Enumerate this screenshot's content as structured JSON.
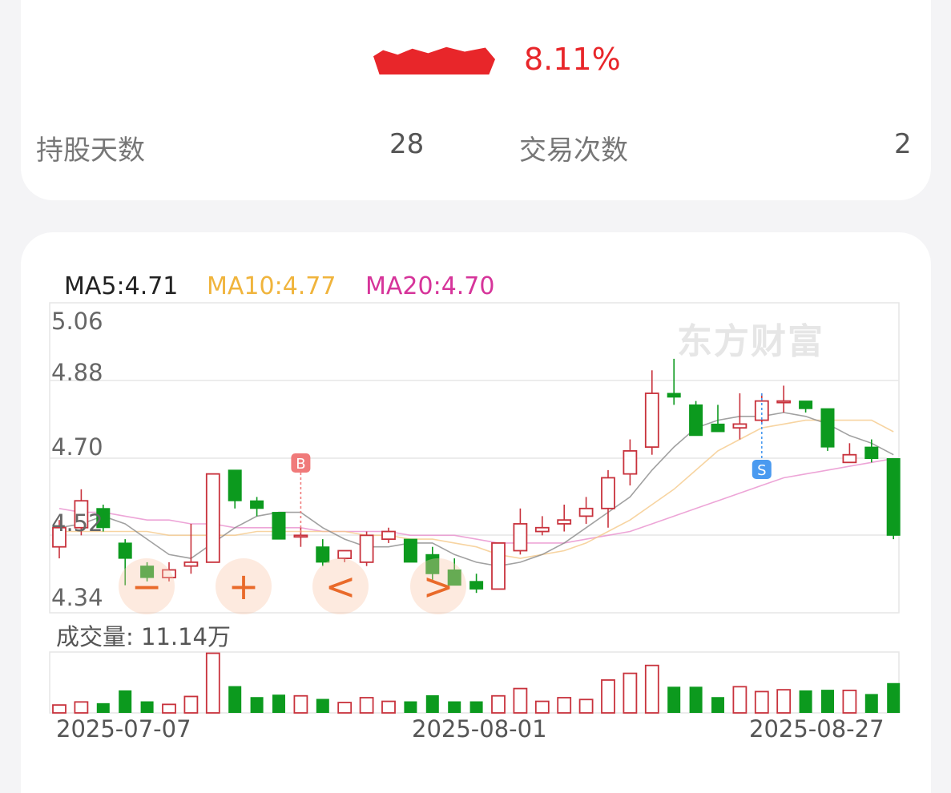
{
  "summary": {
    "percent": "8.11%",
    "hold_days_label": "持股天数",
    "hold_days_value": "28",
    "trade_count_label": "交易次数",
    "trade_count_value": "2"
  },
  "ma_legend": {
    "ma5": "MA5:4.71",
    "ma10": "MA10:4.77",
    "ma20": "MA20:4.70",
    "ma5_color": "#111111",
    "ma10_color": "#f0b43c",
    "ma20_color": "#d6349a"
  },
  "volume_label": "成交量: 11.14万",
  "watermark": "东方财富",
  "controls": [
    "−",
    "+",
    "<",
    ">"
  ],
  "colors": {
    "up": "#c8323c",
    "down": "#0c9a1e",
    "buy_marker": "#f07a7a",
    "sell_marker": "#4a9af0"
  },
  "chart_data": {
    "type": "candlestick",
    "y_ticks": [
      "5.06",
      "4.88",
      "4.70",
      "4.52",
      "4.34"
    ],
    "ylim": [
      4.34,
      5.06
    ],
    "x_ticks": [
      "2025-07-07",
      "2025-08-01",
      "2025-08-27"
    ],
    "markers": [
      {
        "label": "B",
        "candle_index": 11,
        "price": 4.5
      },
      {
        "label": "S",
        "candle_index": 32,
        "price": 4.87
      }
    ],
    "candles": [
      {
        "o": 4.47,
        "c": 4.52,
        "h": 4.54,
        "l": 4.44,
        "v": 0.13
      },
      {
        "o": 4.52,
        "c": 4.59,
        "h": 4.62,
        "l": 4.5,
        "v": 0.18
      },
      {
        "o": 4.57,
        "c": 4.52,
        "h": 4.58,
        "l": 4.51,
        "v": 0.16
      },
      {
        "o": 4.48,
        "c": 4.44,
        "h": 4.49,
        "l": 4.37,
        "v": 0.37
      },
      {
        "o": 4.42,
        "c": 4.39,
        "h": 4.43,
        "l": 4.38,
        "v": 0.19
      },
      {
        "o": 4.39,
        "c": 4.41,
        "h": 4.43,
        "l": 4.38,
        "v": 0.14
      },
      {
        "o": 4.42,
        "c": 4.43,
        "h": 4.53,
        "l": 4.4,
        "v": 0.27
      },
      {
        "o": 4.43,
        "c": 4.66,
        "h": 4.66,
        "l": 4.43,
        "v": 0.98
      },
      {
        "o": 4.67,
        "c": 4.59,
        "h": 4.67,
        "l": 4.57,
        "v": 0.44
      },
      {
        "o": 4.59,
        "c": 4.57,
        "h": 4.6,
        "l": 4.55,
        "v": 0.26
      },
      {
        "o": 4.56,
        "c": 4.49,
        "h": 4.56,
        "l": 4.49,
        "v": 0.3
      },
      {
        "o": 4.5,
        "c": 4.5,
        "h": 4.52,
        "l": 4.47,
        "v": 0.28
      },
      {
        "o": 4.47,
        "c": 4.43,
        "h": 4.49,
        "l": 4.42,
        "v": 0.23
      },
      {
        "o": 4.44,
        "c": 4.46,
        "h": 4.46,
        "l": 4.43,
        "v": 0.17
      },
      {
        "o": 4.43,
        "c": 4.5,
        "h": 4.51,
        "l": 4.42,
        "v": 0.25
      },
      {
        "o": 4.49,
        "c": 4.51,
        "h": 4.52,
        "l": 4.48,
        "v": 0.19
      },
      {
        "o": 4.49,
        "c": 4.43,
        "h": 4.49,
        "l": 4.43,
        "v": 0.19
      },
      {
        "o": 4.45,
        "c": 4.4,
        "h": 4.47,
        "l": 4.38,
        "v": 0.29
      },
      {
        "o": 4.41,
        "c": 4.37,
        "h": 4.44,
        "l": 4.37,
        "v": 0.19
      },
      {
        "o": 4.38,
        "c": 4.36,
        "h": 4.4,
        "l": 4.35,
        "v": 0.19
      },
      {
        "o": 4.36,
        "c": 4.48,
        "h": 4.48,
        "l": 4.36,
        "v": 0.28
      },
      {
        "o": 4.46,
        "c": 4.53,
        "h": 4.57,
        "l": 4.45,
        "v": 0.4
      },
      {
        "o": 4.51,
        "c": 4.52,
        "h": 4.55,
        "l": 4.5,
        "v": 0.19
      },
      {
        "o": 4.53,
        "c": 4.54,
        "h": 4.58,
        "l": 4.51,
        "v": 0.25
      },
      {
        "o": 4.55,
        "c": 4.57,
        "h": 4.6,
        "l": 4.53,
        "v": 0.22
      },
      {
        "o": 4.57,
        "c": 4.65,
        "h": 4.67,
        "l": 4.52,
        "v": 0.54
      },
      {
        "o": 4.66,
        "c": 4.72,
        "h": 4.75,
        "l": 4.63,
        "v": 0.65
      },
      {
        "o": 4.73,
        "c": 4.87,
        "h": 4.93,
        "l": 4.71,
        "v": 0.78
      },
      {
        "o": 4.87,
        "c": 4.86,
        "h": 4.96,
        "l": 4.84,
        "v": 0.43
      },
      {
        "o": 4.84,
        "c": 4.76,
        "h": 4.85,
        "l": 4.76,
        "v": 0.43
      },
      {
        "o": 4.79,
        "c": 4.77,
        "h": 4.84,
        "l": 4.77,
        "v": 0.26
      },
      {
        "o": 4.78,
        "c": 4.79,
        "h": 4.87,
        "l": 4.75,
        "v": 0.43
      },
      {
        "o": 4.8,
        "c": 4.85,
        "h": 4.87,
        "l": 4.79,
        "v": 0.35
      },
      {
        "o": 4.85,
        "c": 4.85,
        "h": 4.89,
        "l": 4.82,
        "v": 0.38
      },
      {
        "o": 4.85,
        "c": 4.83,
        "h": 4.85,
        "l": 4.82,
        "v": 0.37
      },
      {
        "o": 4.83,
        "c": 4.73,
        "h": 4.83,
        "l": 4.72,
        "v": 0.38
      },
      {
        "o": 4.69,
        "c": 4.71,
        "h": 4.74,
        "l": 4.69,
        "v": 0.37
      },
      {
        "o": 4.73,
        "c": 4.7,
        "h": 4.75,
        "l": 4.69,
        "v": 0.31
      },
      {
        "o": 4.7,
        "c": 4.5,
        "h": 4.7,
        "l": 4.49,
        "v": 0.49
      }
    ],
    "ma5": [
      4.52,
      4.53,
      4.55,
      4.53,
      4.49,
      4.45,
      4.44,
      4.48,
      4.52,
      4.55,
      4.56,
      4.56,
      4.52,
      4.49,
      4.47,
      4.47,
      4.48,
      4.48,
      4.45,
      4.43,
      4.42,
      4.43,
      4.45,
      4.48,
      4.52,
      4.56,
      4.6,
      4.67,
      4.73,
      4.78,
      4.8,
      4.81,
      4.81,
      4.82,
      4.81,
      4.79,
      4.76,
      4.74,
      4.71
    ],
    "ma10": [
      4.51,
      4.51,
      4.51,
      4.51,
      4.51,
      4.5,
      4.5,
      4.5,
      4.5,
      4.51,
      4.51,
      4.51,
      4.51,
      4.51,
      4.5,
      4.5,
      4.49,
      4.49,
      4.48,
      4.47,
      4.45,
      4.44,
      4.45,
      4.46,
      4.48,
      4.51,
      4.54,
      4.58,
      4.62,
      4.67,
      4.72,
      4.75,
      4.78,
      4.79,
      4.8,
      4.8,
      4.8,
      4.8,
      4.77
    ],
    "ma20": [
      4.57,
      4.56,
      4.56,
      4.55,
      4.54,
      4.54,
      4.53,
      4.53,
      4.52,
      4.52,
      4.52,
      4.52,
      4.51,
      4.51,
      4.51,
      4.51,
      4.5,
      4.5,
      4.5,
      4.49,
      4.48,
      4.48,
      4.48,
      4.48,
      4.49,
      4.5,
      4.51,
      4.53,
      4.55,
      4.57,
      4.59,
      4.61,
      4.63,
      4.65,
      4.66,
      4.67,
      4.68,
      4.69,
      4.7
    ]
  }
}
